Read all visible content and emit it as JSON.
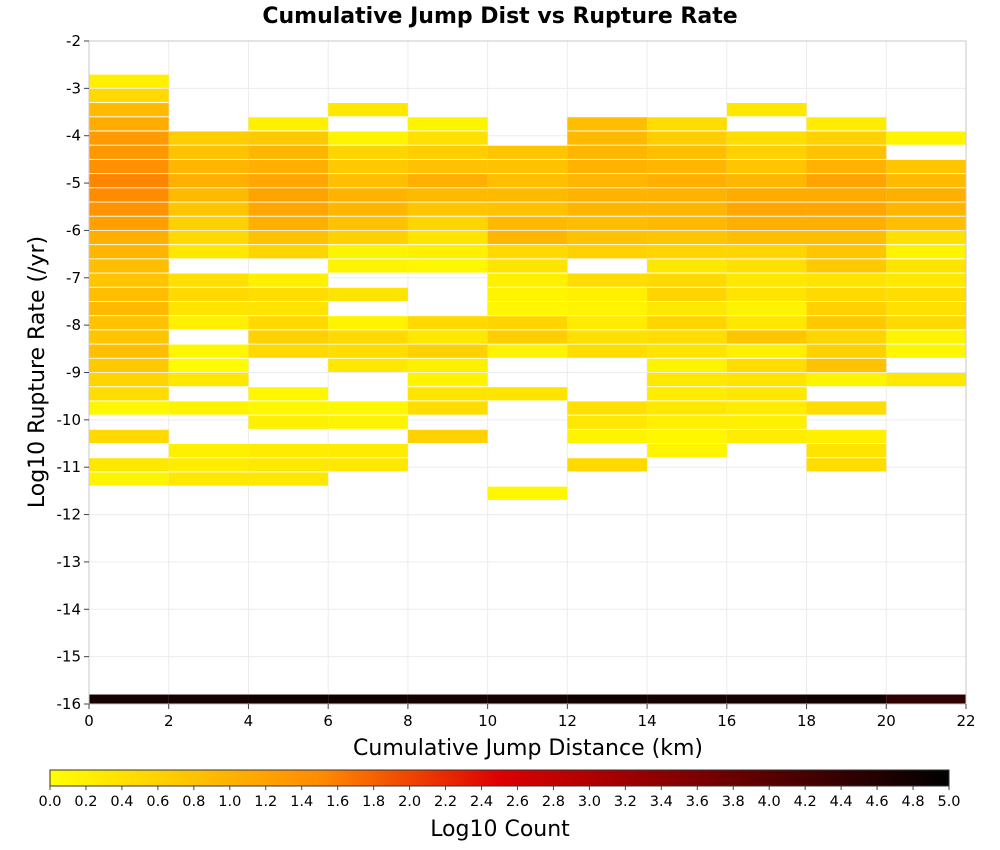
{
  "chart_data": {
    "type": "heatmap",
    "title": "Cumulative Jump Dist vs Rupture Rate",
    "xlabel": "Cumulative Jump Distance (km)",
    "ylabel": "Log10 Rupture Rate (/yr)",
    "xlim": [
      0,
      22
    ],
    "ylim": [
      -16,
      -2
    ],
    "x_bin_width": 2,
    "y_bin_height": 0.28,
    "x_ticks": [
      0,
      2,
      4,
      6,
      8,
      10,
      12,
      14,
      16,
      18,
      20,
      22
    ],
    "y_ticks": [
      -2,
      -3,
      -4,
      -5,
      -6,
      -7,
      -8,
      -9,
      -10,
      -11,
      -12,
      -13,
      -14,
      -15,
      -16
    ],
    "grid": true,
    "colorbar": {
      "label": "Log10 Count",
      "range": [
        0.0,
        5.0
      ],
      "ticks": [
        "0.0",
        "0.2",
        "0.4",
        "0.6",
        "0.8",
        "1.0",
        "1.2",
        "1.4",
        "1.6",
        "1.8",
        "2.0",
        "2.2",
        "2.4",
        "2.6",
        "2.8",
        "3.0",
        "3.2",
        "3.4",
        "3.6",
        "3.8",
        "4.0",
        "4.2",
        "4.4",
        "4.6",
        "4.8",
        "5.0"
      ],
      "colors": [
        "#ffff00",
        "#ff8c00",
        "#dd0000",
        "#000000"
      ]
    },
    "columns": [
      {
        "x0": 0,
        "cells": [
          [
            -2.85,
            0.2
          ],
          [
            -3.15,
            0.5
          ],
          [
            -3.45,
            0.9
          ],
          [
            -3.75,
            1.1
          ],
          [
            -4.05,
            1.3
          ],
          [
            -4.35,
            1.35
          ],
          [
            -4.65,
            1.45
          ],
          [
            -4.95,
            1.55
          ],
          [
            -5.25,
            1.5
          ],
          [
            -5.55,
            1.4
          ],
          [
            -5.85,
            1.25
          ],
          [
            -6.15,
            1.05
          ],
          [
            -6.45,
            0.95
          ],
          [
            -6.75,
            0.85
          ],
          [
            -7.05,
            0.75
          ],
          [
            -7.35,
            0.85
          ],
          [
            -7.65,
            0.9
          ],
          [
            -7.95,
            0.8
          ],
          [
            -8.25,
            0.75
          ],
          [
            -8.55,
            0.85
          ],
          [
            -8.85,
            0.7
          ],
          [
            -9.15,
            0.55
          ],
          [
            -9.45,
            0.45
          ],
          [
            -9.75,
            0.1
          ],
          [
            -10.35,
            0.5
          ],
          [
            -10.95,
            0.3
          ],
          [
            -11.25,
            0.15
          ]
        ]
      },
      {
        "x0": 2,
        "cells": [
          [
            -4.05,
            0.65
          ],
          [
            -4.35,
            0.8
          ],
          [
            -4.65,
            0.95
          ],
          [
            -4.95,
            1.05
          ],
          [
            -5.25,
            0.9
          ],
          [
            -5.55,
            0.75
          ],
          [
            -5.85,
            0.6
          ],
          [
            -6.15,
            0.5
          ],
          [
            -6.45,
            0.3
          ],
          [
            -7.05,
            0.4
          ],
          [
            -7.35,
            0.5
          ],
          [
            -7.65,
            0.35
          ],
          [
            -7.95,
            0.2
          ],
          [
            -8.55,
            0.1
          ],
          [
            -8.85,
            0.05
          ],
          [
            -9.15,
            0.3
          ],
          [
            -9.75,
            0.15
          ],
          [
            -10.65,
            0.2
          ],
          [
            -10.95,
            0.25
          ],
          [
            -11.25,
            0.3
          ]
        ]
      },
      {
        "x0": 4,
        "cells": [
          [
            -3.75,
            0.2
          ],
          [
            -4.05,
            0.7
          ],
          [
            -4.35,
            0.95
          ],
          [
            -4.65,
            1.05
          ],
          [
            -4.95,
            1.15
          ],
          [
            -5.25,
            1.2
          ],
          [
            -5.55,
            1.15
          ],
          [
            -5.85,
            1.05
          ],
          [
            -6.15,
            0.8
          ],
          [
            -6.45,
            0.55
          ],
          [
            -7.05,
            0.2
          ],
          [
            -7.35,
            0.45
          ],
          [
            -7.65,
            0.35
          ],
          [
            -7.95,
            0.5
          ],
          [
            -8.25,
            0.6
          ],
          [
            -8.55,
            0.5
          ],
          [
            -9.45,
            0.1
          ],
          [
            -9.75,
            0.1
          ],
          [
            -10.05,
            0.2
          ],
          [
            -10.65,
            0.25
          ],
          [
            -10.95,
            0.3
          ],
          [
            -11.25,
            0.3
          ]
        ]
      },
      {
        "x0": 6,
        "cells": [
          [
            -3.45,
            0.3
          ],
          [
            -4.05,
            0.15
          ],
          [
            -4.35,
            0.55
          ],
          [
            -4.65,
            0.7
          ],
          [
            -4.95,
            0.85
          ],
          [
            -5.25,
            1.0
          ],
          [
            -5.55,
            0.95
          ],
          [
            -5.85,
            0.8
          ],
          [
            -6.15,
            0.6
          ],
          [
            -6.45,
            0.15
          ],
          [
            -6.75,
            0.15
          ],
          [
            -7.35,
            0.35
          ],
          [
            -7.95,
            0.15
          ],
          [
            -8.25,
            0.5
          ],
          [
            -8.55,
            0.45
          ],
          [
            -8.85,
            0.3
          ],
          [
            -9.75,
            0.1
          ],
          [
            -10.05,
            0.15
          ],
          [
            -10.65,
            0.25
          ],
          [
            -10.95,
            0.3
          ]
        ]
      },
      {
        "x0": 8,
        "cells": [
          [
            -3.75,
            0.15
          ],
          [
            -4.05,
            0.4
          ],
          [
            -4.35,
            0.65
          ],
          [
            -4.65,
            0.8
          ],
          [
            -4.95,
            1.05
          ],
          [
            -5.25,
            0.9
          ],
          [
            -5.55,
            0.75
          ],
          [
            -5.85,
            0.55
          ],
          [
            -6.15,
            0.35
          ],
          [
            -6.45,
            0.2
          ],
          [
            -6.75,
            0.1
          ],
          [
            -7.95,
            0.5
          ],
          [
            -8.25,
            0.3
          ],
          [
            -8.55,
            0.6
          ],
          [
            -8.85,
            0.2
          ],
          [
            -9.15,
            0.15
          ],
          [
            -9.45,
            0.35
          ],
          [
            -9.75,
            0.45
          ],
          [
            -10.35,
            0.6
          ]
        ]
      },
      {
        "x0": 10,
        "cells": [
          [
            -4.35,
            0.75
          ],
          [
            -4.65,
            0.8
          ],
          [
            -4.95,
            0.85
          ],
          [
            -5.25,
            0.9
          ],
          [
            -5.55,
            0.8
          ],
          [
            -5.85,
            0.9
          ],
          [
            -6.15,
            0.95
          ],
          [
            -6.45,
            0.5
          ],
          [
            -6.75,
            0.35
          ],
          [
            -7.05,
            0.2
          ],
          [
            -7.35,
            0.15
          ],
          [
            -7.65,
            0.1
          ],
          [
            -7.95,
            0.55
          ],
          [
            -8.25,
            0.65
          ],
          [
            -8.55,
            0.15
          ],
          [
            -9.45,
            0.35
          ],
          [
            -11.55,
            0.1
          ]
        ]
      },
      {
        "x0": 12,
        "cells": [
          [
            -3.75,
            0.85
          ],
          [
            -4.05,
            0.9
          ],
          [
            -4.35,
            0.95
          ],
          [
            -4.65,
            1.0
          ],
          [
            -4.95,
            0.95
          ],
          [
            -5.25,
            1.0
          ],
          [
            -5.55,
            0.95
          ],
          [
            -5.85,
            0.85
          ],
          [
            -6.15,
            0.8
          ],
          [
            -6.45,
            0.6
          ],
          [
            -7.05,
            0.45
          ],
          [
            -7.35,
            0.2
          ],
          [
            -7.65,
            0.15
          ],
          [
            -7.95,
            0.25
          ],
          [
            -8.25,
            0.4
          ],
          [
            -8.55,
            0.45
          ],
          [
            -9.75,
            0.4
          ],
          [
            -10.05,
            0.3
          ],
          [
            -10.35,
            0.15
          ],
          [
            -10.95,
            0.5
          ]
        ]
      },
      {
        "x0": 14,
        "cells": [
          [
            -3.75,
            0.45
          ],
          [
            -4.05,
            0.65
          ],
          [
            -4.35,
            0.85
          ],
          [
            -4.65,
            0.95
          ],
          [
            -4.95,
            1.05
          ],
          [
            -5.25,
            1.0
          ],
          [
            -5.55,
            0.95
          ],
          [
            -5.85,
            0.9
          ],
          [
            -6.15,
            0.75
          ],
          [
            -6.45,
            0.55
          ],
          [
            -6.75,
            0.3
          ],
          [
            -7.05,
            0.5
          ],
          [
            -7.35,
            0.55
          ],
          [
            -7.65,
            0.3
          ],
          [
            -7.95,
            0.55
          ],
          [
            -8.25,
            0.45
          ],
          [
            -8.55,
            0.35
          ],
          [
            -8.85,
            0.15
          ],
          [
            -9.15,
            0.3
          ],
          [
            -9.45,
            0.25
          ],
          [
            -9.75,
            0.3
          ],
          [
            -10.05,
            0.2
          ],
          [
            -10.35,
            0.1
          ],
          [
            -10.65,
            0.15
          ]
        ]
      },
      {
        "x0": 16,
        "cells": [
          [
            -3.45,
            0.3
          ],
          [
            -4.05,
            0.45
          ],
          [
            -4.35,
            0.6
          ],
          [
            -4.65,
            0.75
          ],
          [
            -4.95,
            0.95
          ],
          [
            -5.25,
            1.1
          ],
          [
            -5.55,
            1.15
          ],
          [
            -5.85,
            1.05
          ],
          [
            -6.15,
            0.85
          ],
          [
            -6.45,
            0.55
          ],
          [
            -6.75,
            0.4
          ],
          [
            -7.05,
            0.3
          ],
          [
            -7.35,
            0.35
          ],
          [
            -7.65,
            0.15
          ],
          [
            -7.95,
            0.3
          ],
          [
            -8.25,
            0.75
          ],
          [
            -8.55,
            0.2
          ],
          [
            -8.85,
            0.45
          ],
          [
            -9.15,
            0.35
          ],
          [
            -9.45,
            0.3
          ],
          [
            -9.75,
            0.25
          ],
          [
            -10.05,
            0.2
          ],
          [
            -10.35,
            0.25
          ]
        ]
      },
      {
        "x0": 18,
        "cells": [
          [
            -3.75,
            0.25
          ],
          [
            -4.05,
            0.6
          ],
          [
            -4.35,
            0.8
          ],
          [
            -4.65,
            1.0
          ],
          [
            -4.95,
            1.2
          ],
          [
            -5.25,
            1.1
          ],
          [
            -5.55,
            1.15
          ],
          [
            -5.85,
            1.05
          ],
          [
            -6.15,
            0.85
          ],
          [
            -6.45,
            0.75
          ],
          [
            -6.75,
            0.7
          ],
          [
            -7.05,
            0.35
          ],
          [
            -7.35,
            0.5
          ],
          [
            -7.65,
            0.6
          ],
          [
            -7.95,
            0.7
          ],
          [
            -8.25,
            0.55
          ],
          [
            -8.55,
            0.6
          ],
          [
            -8.85,
            0.8
          ],
          [
            -9.15,
            0.15
          ],
          [
            -9.75,
            0.45
          ],
          [
            -10.35,
            0.2
          ],
          [
            -10.65,
            0.35
          ],
          [
            -10.95,
            0.45
          ]
        ]
      },
      {
        "x0": 20,
        "cells": [
          [
            -4.05,
            0.15
          ],
          [
            -4.65,
            0.75
          ],
          [
            -4.95,
            0.9
          ],
          [
            -5.25,
            1.05
          ],
          [
            -5.55,
            0.95
          ],
          [
            -5.85,
            0.85
          ],
          [
            -6.15,
            0.4
          ],
          [
            -6.45,
            0.15
          ],
          [
            -6.75,
            0.35
          ],
          [
            -7.05,
            0.3
          ],
          [
            -7.35,
            0.45
          ],
          [
            -7.65,
            0.4
          ],
          [
            -7.95,
            0.5
          ],
          [
            -8.25,
            0.15
          ],
          [
            -8.55,
            0.1
          ],
          [
            -9.15,
            0.3
          ]
        ]
      }
    ],
    "baseline_row": {
      "y_center": -15.9,
      "height": 0.2,
      "values": [
        4.75,
        4.75,
        4.8,
        4.8,
        4.75,
        4.75,
        4.8,
        4.75,
        4.75,
        4.8,
        4.45
      ]
    }
  }
}
